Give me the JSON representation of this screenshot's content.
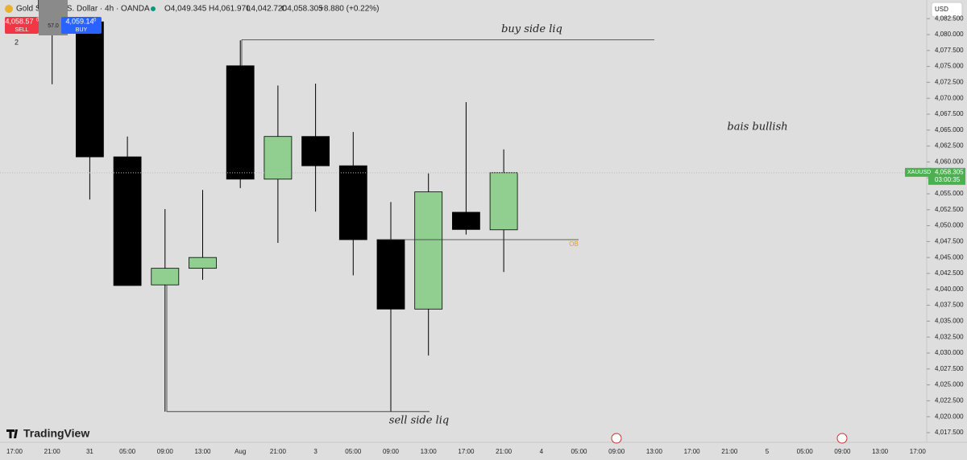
{
  "header": {
    "symbol": "Gold Spot / U.S. Dollar · 4h · OANDA",
    "open": "O4,049.345",
    "high": "H4,061.970",
    "low": "L4,042.720",
    "close": "C4,058.305",
    "change": "+8.880 (+0.22%)",
    "sell_price": "4,058.57",
    "sell_sup": "0",
    "sell": "SELL",
    "spread": "57.0",
    "buy_price": "4,059.14",
    "buy_sup": "0",
    "buy": "BUY",
    "indicator_count": "2",
    "currency": "USD",
    "price_tag_symbol": "XAUUSD",
    "price_tag_price": "4,058.305",
    "price_tag_timer": "03:00:35",
    "logo": "TradingView"
  },
  "chart_data": {
    "type": "candlestick",
    "categories": [
      "17:00",
      "21:00",
      "31",
      "05:00",
      "09:00",
      "13:00",
      "Aug",
      "21:00",
      "3",
      "05:00",
      "09:00",
      "13:00",
      "17:00",
      "21:00",
      "4",
      "05:00",
      "09:00",
      "13:00",
      "17:00",
      "21:00",
      "5",
      "05:00",
      "09:00",
      "13:00",
      "17:00"
    ],
    "open": [
      null,
      4087,
      4082,
      4060.8,
      4040.7,
      4043.3,
      4075.1,
      4057.3,
      4064.0,
      4059.4,
      4047.8,
      4036.9,
      4052.1,
      4049.345,
      null,
      null,
      null,
      null,
      null,
      null,
      null,
      null,
      null,
      null,
      null
    ],
    "high": [
      null,
      4088,
      4082.5,
      4064.0,
      4052.6,
      4055.6,
      4079.1,
      4072.0,
      4072.3,
      4064.7,
      4053.7,
      4058.2,
      4069.4,
      4061.97,
      null,
      null,
      null,
      null,
      null,
      null,
      null,
      null,
      null,
      null,
      null
    ],
    "low": [
      null,
      4072.2,
      4054.1,
      4040.6,
      4020.8,
      4041.5,
      4055.9,
      4047.3,
      4052.2,
      4042.2,
      4020.8,
      4029.6,
      4048.6,
      4042.72,
      null,
      null,
      null,
      null,
      null,
      null,
      null,
      null,
      null,
      null,
      null
    ],
    "close": [
      null,
      4084,
      4060.8,
      4040.6,
      4043.3,
      4045.0,
      4057.3,
      4064.0,
      4059.4,
      4047.8,
      4036.9,
      4055.3,
      4049.4,
      4058.305,
      null,
      null,
      null,
      null,
      null,
      null,
      null,
      null,
      null,
      null,
      null
    ],
    "up_color": "#90cf90",
    "down_color": "#000000",
    "ylim": [
      4015.98,
      4085.43
    ],
    "yticks": [
      {
        "value": 4017.5,
        "label": "4,017.500"
      },
      {
        "value": 4020,
        "label": "4,020.000"
      },
      {
        "value": 4022.5,
        "label": "4,022.500"
      },
      {
        "value": 4025,
        "label": "4,025.000"
      },
      {
        "value": 4027.5,
        "label": "4,027.500"
      },
      {
        "value": 4030,
        "label": "4,030.000"
      },
      {
        "value": 4032.5,
        "label": "4,032.500"
      },
      {
        "value": 4035,
        "label": "4,035.000"
      },
      {
        "value": 4037.5,
        "label": "4,037.500"
      },
      {
        "value": 4040,
        "label": "4,040.000"
      },
      {
        "value": 4042.5,
        "label": "4,042.500"
      },
      {
        "value": 4045,
        "label": "4,045.000"
      },
      {
        "value": 4047.5,
        "label": "4,047.500"
      },
      {
        "value": 4050,
        "label": "4,050.000"
      },
      {
        "value": 4052.5,
        "label": "4,052.500"
      },
      {
        "value": 4055,
        "label": "4,055.000"
      },
      {
        "value": 4057.5,
        "label": "4,057.500"
      },
      {
        "value": 4060,
        "label": "4,060.000"
      },
      {
        "value": 4062.5,
        "label": "4,062.500"
      },
      {
        "value": 4065,
        "label": "4,065.000"
      },
      {
        "value": 4067.5,
        "label": "4,067.500"
      },
      {
        "value": 4070,
        "label": "4,070.000"
      },
      {
        "value": 4072.5,
        "label": "4,072.500"
      },
      {
        "value": 4075,
        "label": "4,075.000"
      },
      {
        "value": 4077.5,
        "label": "4,077.500"
      },
      {
        "value": 4080,
        "label": "4,080.000"
      },
      {
        "value": 4082.5,
        "label": "4,082.500"
      }
    ],
    "levels": [
      {
        "label": "buy side liq",
        "value": 4079.2
      },
      {
        "label": "sell side liq",
        "value": 4020.8
      },
      {
        "label": "OB",
        "value": 4047.8
      }
    ],
    "annotation": "bais bullish"
  }
}
